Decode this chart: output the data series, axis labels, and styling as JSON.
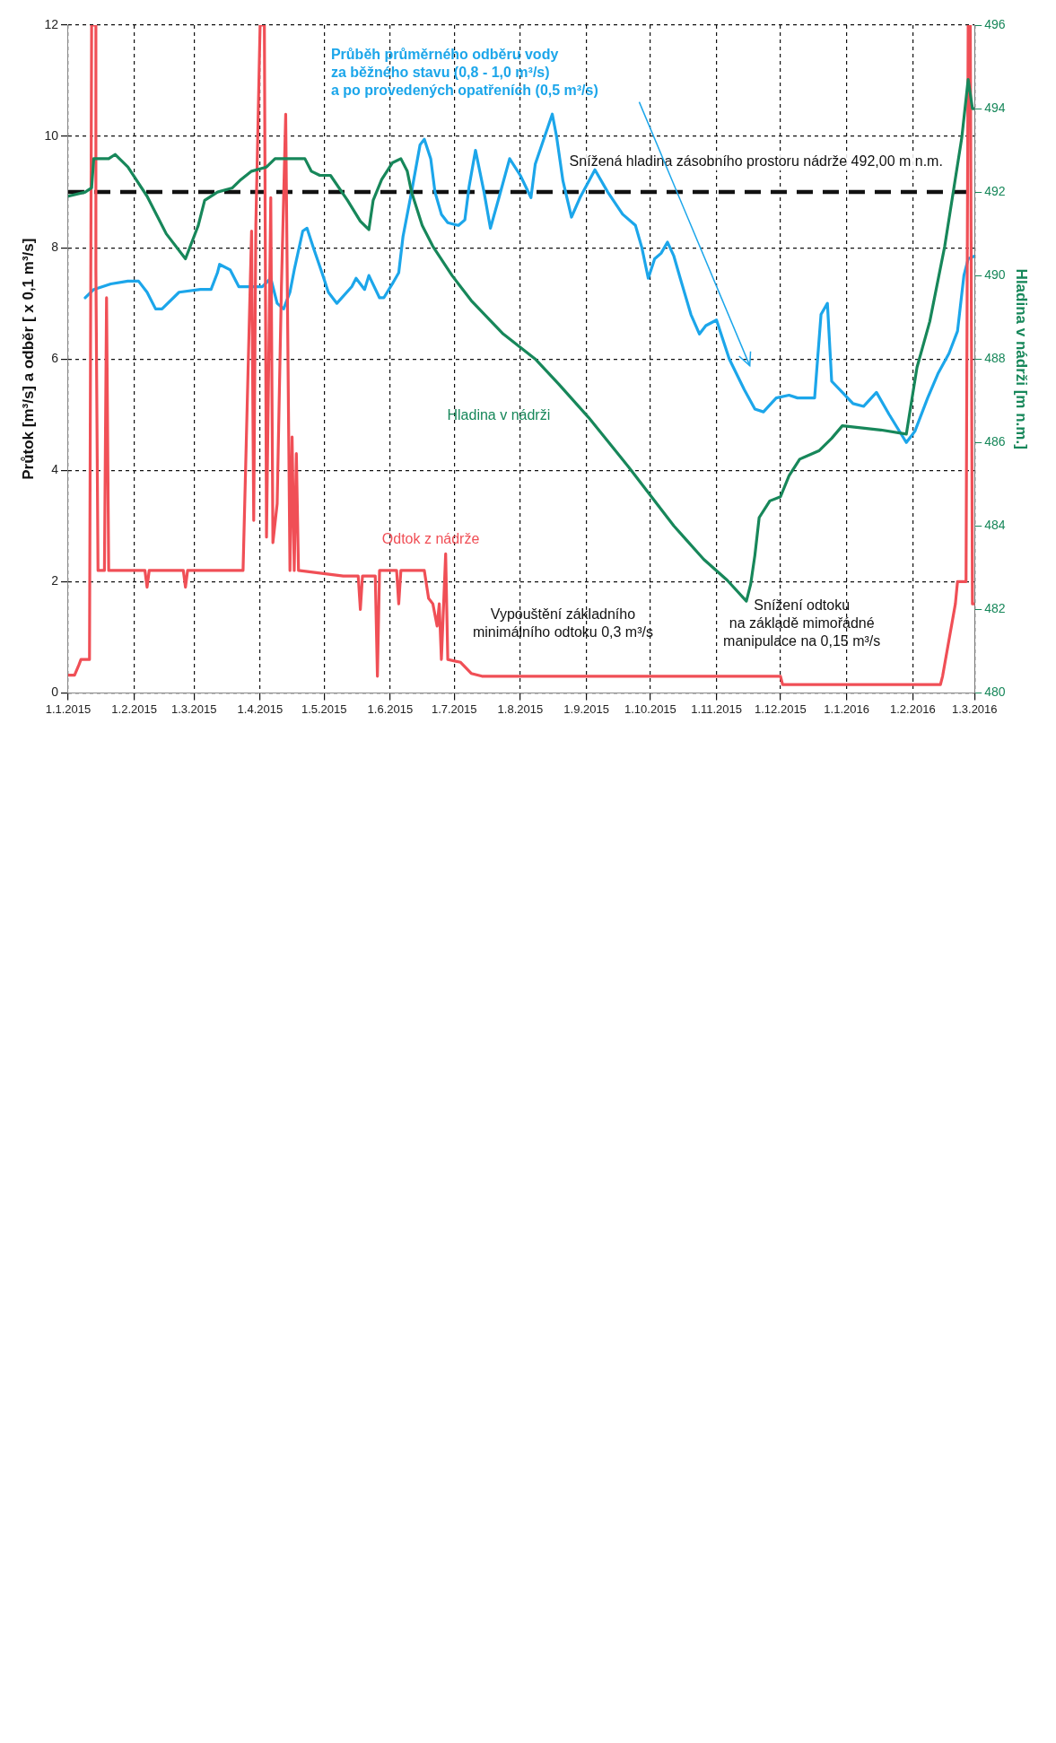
{
  "chart_data": {
    "type": "line",
    "ylabel": "Průtok [m³/s] a odběr [ x 0,1 m³/s]",
    "y2label": "Hladina v nádrži [m n.m.]",
    "xlim": [
      "2015-01-01",
      "2016-03-01"
    ],
    "xticks": [
      {
        "value": "2015-01-01",
        "label": "1.1.2015"
      },
      {
        "value": "2015-02-01",
        "label": "1.2.2015"
      },
      {
        "value": "2015-03-01",
        "label": "1.3.2015"
      },
      {
        "value": "2015-04-01",
        "label": "1.4.2015"
      },
      {
        "value": "2015-05-01",
        "label": "1.5.2015"
      },
      {
        "value": "2015-06-01",
        "label": "1.6.2015"
      },
      {
        "value": "2015-07-01",
        "label": "1.7.2015"
      },
      {
        "value": "2015-08-01",
        "label": "1.8.2015"
      },
      {
        "value": "2015-09-01",
        "label": "1.9.2015"
      },
      {
        "value": "2015-10-01",
        "label": "1.10.2015"
      },
      {
        "value": "2015-11-01",
        "label": "1.11.2015"
      },
      {
        "value": "2015-12-01",
        "label": "1.12.2015"
      },
      {
        "value": "2016-01-01",
        "label": "1.1.2016"
      },
      {
        "value": "2016-02-01",
        "label": "1.2.2016"
      },
      {
        "value": "2016-03-01",
        "label": "1.3.2016"
      }
    ],
    "ylim": [
      0,
      12
    ],
    "yticks": [
      0,
      2,
      4,
      6,
      8,
      10,
      12
    ],
    "y2lim": [
      480,
      496
    ],
    "y2ticks": [
      480,
      482,
      484,
      486,
      488,
      490,
      492,
      494,
      496
    ],
    "grid": true,
    "marker": "none",
    "line_style": "solid",
    "series": [
      {
        "name": "Odtok z nádrže",
        "color": "#f04f56",
        "x": [
          "2015-01-01",
          "2015-01-04",
          "2015-01-06",
          "2015-01-07",
          "2015-01-11",
          "2015-01-12",
          "2015-01-14",
          "2015-01-14",
          "2015-01-15",
          "2015-01-18",
          "2015-01-19",
          "2015-01-20",
          "2015-02-06",
          "2015-02-07",
          "2015-02-08",
          "2015-02-24",
          "2015-02-25",
          "2015-02-26",
          "2015-03-24",
          "2015-03-28",
          "2015-03-29",
          "2015-03-30",
          "2015-04-01",
          "2015-04-03",
          "2015-04-04",
          "2015-04-06",
          "2015-04-07",
          "2015-04-09",
          "2015-04-11",
          "2015-04-13",
          "2015-04-15",
          "2015-04-16",
          "2015-04-17",
          "2015-04-18",
          "2015-04-19",
          "2015-05-10",
          "2015-05-17",
          "2015-05-18",
          "2015-05-19",
          "2015-05-25",
          "2015-05-26",
          "2015-05-27",
          "2015-06-04",
          "2015-06-05",
          "2015-06-06",
          "2015-06-17",
          "2015-06-19",
          "2015-06-21",
          "2015-06-23",
          "2015-06-24",
          "2015-06-25",
          "2015-06-27",
          "2015-06-28",
          "2015-07-04",
          "2015-07-09",
          "2015-07-14",
          "2015-12-01",
          "2015-12-02",
          "2016-02-14",
          "2016-02-15",
          "2016-02-21",
          "2016-02-22",
          "2016-02-26",
          "2016-02-27",
          "2016-02-28",
          "2016-02-29",
          "2016-03-01"
        ],
        "values": [
          0.32,
          0.32,
          0.5,
          0.6,
          0.6,
          12,
          12,
          7.6,
          2.2,
          2.2,
          7.1,
          2.2,
          2.2,
          1.9,
          2.2,
          2.2,
          1.9,
          2.2,
          2.2,
          8.3,
          3.1,
          8.4,
          12,
          12,
          2.8,
          8.9,
          2.7,
          3.4,
          7.3,
          10.4,
          2.2,
          4.6,
          2.2,
          4.3,
          2.2,
          2.1,
          2.1,
          1.5,
          2.1,
          2.1,
          0.3,
          2.2,
          2.2,
          1.6,
          2.2,
          2.2,
          1.7,
          1.6,
          1.2,
          1.6,
          0.6,
          2.5,
          0.6,
          0.55,
          0.35,
          0.3,
          0.3,
          0.15,
          0.15,
          0.3,
          1.6,
          2,
          2,
          12,
          12,
          1.6,
          1.6
        ]
      },
      {
        "name": "Průběh průměrného odběru vody\nza běžného stavu (0,8 - 1,0 m³/s)\na po provedených opatřeních (0,5 m³/s)",
        "color": "#1ca6ea",
        "x": [
          "2015-01-09",
          "2015-01-13",
          "2015-01-21",
          "2015-01-29",
          "2015-02-03",
          "2015-02-07",
          "2015-02-11",
          "2015-02-14",
          "2015-02-22",
          "2015-03-04",
          "2015-03-09",
          "2015-03-12",
          "2015-03-13",
          "2015-03-18",
          "2015-03-22",
          "2015-04-02",
          "2015-04-06",
          "2015-04-09",
          "2015-04-12",
          "2015-04-15",
          "2015-04-17",
          "2015-04-21",
          "2015-04-23",
          "2015-04-26",
          "2015-04-30",
          "2015-05-03",
          "2015-05-07",
          "2015-05-14",
          "2015-05-16",
          "2015-05-20",
          "2015-05-22",
          "2015-05-27",
          "2015-05-29",
          "2015-06-02",
          "2015-06-05",
          "2015-06-07",
          "2015-06-11",
          "2015-06-15",
          "2015-06-17",
          "2015-06-20",
          "2015-06-22",
          "2015-06-25",
          "2015-06-28",
          "2015-07-03",
          "2015-07-06",
          "2015-07-08",
          "2015-07-11",
          "2015-07-15",
          "2015-07-18",
          "2015-07-22",
          "2015-07-27",
          "2015-08-01",
          "2015-08-06",
          "2015-08-08",
          "2015-08-16",
          "2015-08-18",
          "2015-08-21",
          "2015-08-25",
          "2015-08-29",
          "2015-09-05",
          "2015-09-11",
          "2015-09-18",
          "2015-09-24",
          "2015-09-27",
          "2015-09-30",
          "2015-10-03",
          "2015-10-06",
          "2015-10-09",
          "2015-10-12",
          "2015-10-15",
          "2015-10-20",
          "2015-10-24",
          "2015-10-27",
          "2015-11-01",
          "2015-11-07",
          "2015-11-14",
          "2015-11-19",
          "2015-11-23",
          "2015-11-29",
          "2015-12-05",
          "2015-12-09",
          "2015-12-14",
          "2015-12-17",
          "2015-12-20",
          "2015-12-23",
          "2015-12-25",
          "2015-12-30",
          "2016-01-04",
          "2016-01-09",
          "2016-01-15",
          "2016-01-21",
          "2016-01-29",
          "2016-02-02",
          "2016-02-08",
          "2016-02-13",
          "2016-02-18",
          "2016-02-22",
          "2016-02-25",
          "2016-02-27",
          "2016-03-01"
        ],
        "values": [
          7.1,
          7.25,
          7.35,
          7.4,
          7.4,
          7.2,
          6.9,
          6.9,
          7.2,
          7.25,
          7.25,
          7.55,
          7.7,
          7.6,
          7.3,
          7.3,
          7.45,
          7,
          6.9,
          7.2,
          7.6,
          8.3,
          8.35,
          8,
          7.55,
          7.2,
          7,
          7.3,
          7.45,
          7.25,
          7.5,
          7.1,
          7.1,
          7.35,
          7.55,
          8.2,
          9,
          9.85,
          9.95,
          9.6,
          9,
          8.6,
          8.45,
          8.4,
          8.5,
          9.1,
          9.75,
          9,
          8.35,
          8.9,
          9.6,
          9.3,
          8.9,
          9.5,
          10.4,
          10,
          9.2,
          8.55,
          8.9,
          9.4,
          9,
          8.6,
          8.4,
          8,
          7.45,
          7.8,
          7.9,
          8.1,
          7.85,
          7.45,
          6.8,
          6.45,
          6.6,
          6.7,
          6,
          5.45,
          5.1,
          5.05,
          5.3,
          5.35,
          5.3,
          5.3,
          5.3,
          6.8,
          7,
          5.6,
          5.4,
          5.2,
          5.15,
          5.4,
          5,
          4.5,
          4.7,
          5.3,
          5.75,
          6.1,
          6.5,
          7.5,
          7.8,
          7.85
        ]
      },
      {
        "name": "Hladina v nádrži",
        "color": "#17875a",
        "axis": "y2",
        "x": [
          "2015-01-01",
          "2015-01-09",
          "2015-01-12",
          "2015-01-13",
          "2015-01-20",
          "2015-01-23",
          "2015-01-29",
          "2015-02-07",
          "2015-02-16",
          "2015-02-25",
          "2015-03-03",
          "2015-03-06",
          "2015-03-12",
          "2015-03-19",
          "2015-03-23",
          "2015-03-28",
          "2015-04-04",
          "2015-04-08",
          "2015-04-17",
          "2015-04-22",
          "2015-04-25",
          "2015-04-29",
          "2015-05-04",
          "2015-05-12",
          "2015-05-18",
          "2015-05-22",
          "2015-05-24",
          "2015-05-28",
          "2015-06-02",
          "2015-06-06",
          "2015-06-09",
          "2015-06-11",
          "2015-06-16",
          "2015-06-21",
          "2015-06-30",
          "2015-07-09",
          "2015-07-24",
          "2015-08-08",
          "2015-08-19",
          "2015-09-02",
          "2015-09-21",
          "2015-10-12",
          "2015-10-26",
          "2015-11-06",
          "2015-11-15",
          "2015-11-17",
          "2015-11-19",
          "2015-11-21",
          "2015-11-26",
          "2015-12-01",
          "2015-12-05",
          "2015-12-10",
          "2015-12-19",
          "2015-12-25",
          "2015-12-30",
          "2016-01-17",
          "2016-01-29",
          "2016-02-03",
          "2016-02-09",
          "2016-02-16",
          "2016-02-24",
          "2016-02-27",
          "2016-02-29",
          "2016-03-01"
        ],
        "values": [
          491.9,
          492,
          492.1,
          492.8,
          492.8,
          492.9,
          492.6,
          491.9,
          491,
          490.4,
          491.2,
          491.8,
          492,
          492.1,
          492.3,
          492.5,
          492.6,
          492.8,
          492.8,
          492.8,
          492.5,
          492.4,
          492.4,
          491.8,
          491.3,
          491.1,
          491.8,
          492.3,
          492.7,
          492.8,
          492.5,
          492,
          491.2,
          490.7,
          490,
          489.4,
          488.6,
          488,
          487.4,
          486.6,
          485.4,
          484,
          483.2,
          482.7,
          482.2,
          482.6,
          483.3,
          484.2,
          484.6,
          484.7,
          485.2,
          485.6,
          485.8,
          486.1,
          486.4,
          486.3,
          486.2,
          487.8,
          488.9,
          490.7,
          493.3,
          494.7,
          494,
          494
        ]
      }
    ],
    "ref_lines": [
      {
        "axis": "y2",
        "value": 492,
        "label": "Snížená hladina zásobního prostoru nádrže 492,00 m n.m.",
        "color": "#111111",
        "line_style": "dashed"
      }
    ],
    "annotations": [
      {
        "text": "Vypouštění základního\nminimálního odtoku 0,3 m³/s",
        "x": "2015-08-21",
        "y": 0.3
      },
      {
        "text": "Snížení odtoku\nna základě mimořádné\nmanipulace na 0,15 m³/s",
        "x": "2015-12-11",
        "y": 0.15
      }
    ]
  }
}
